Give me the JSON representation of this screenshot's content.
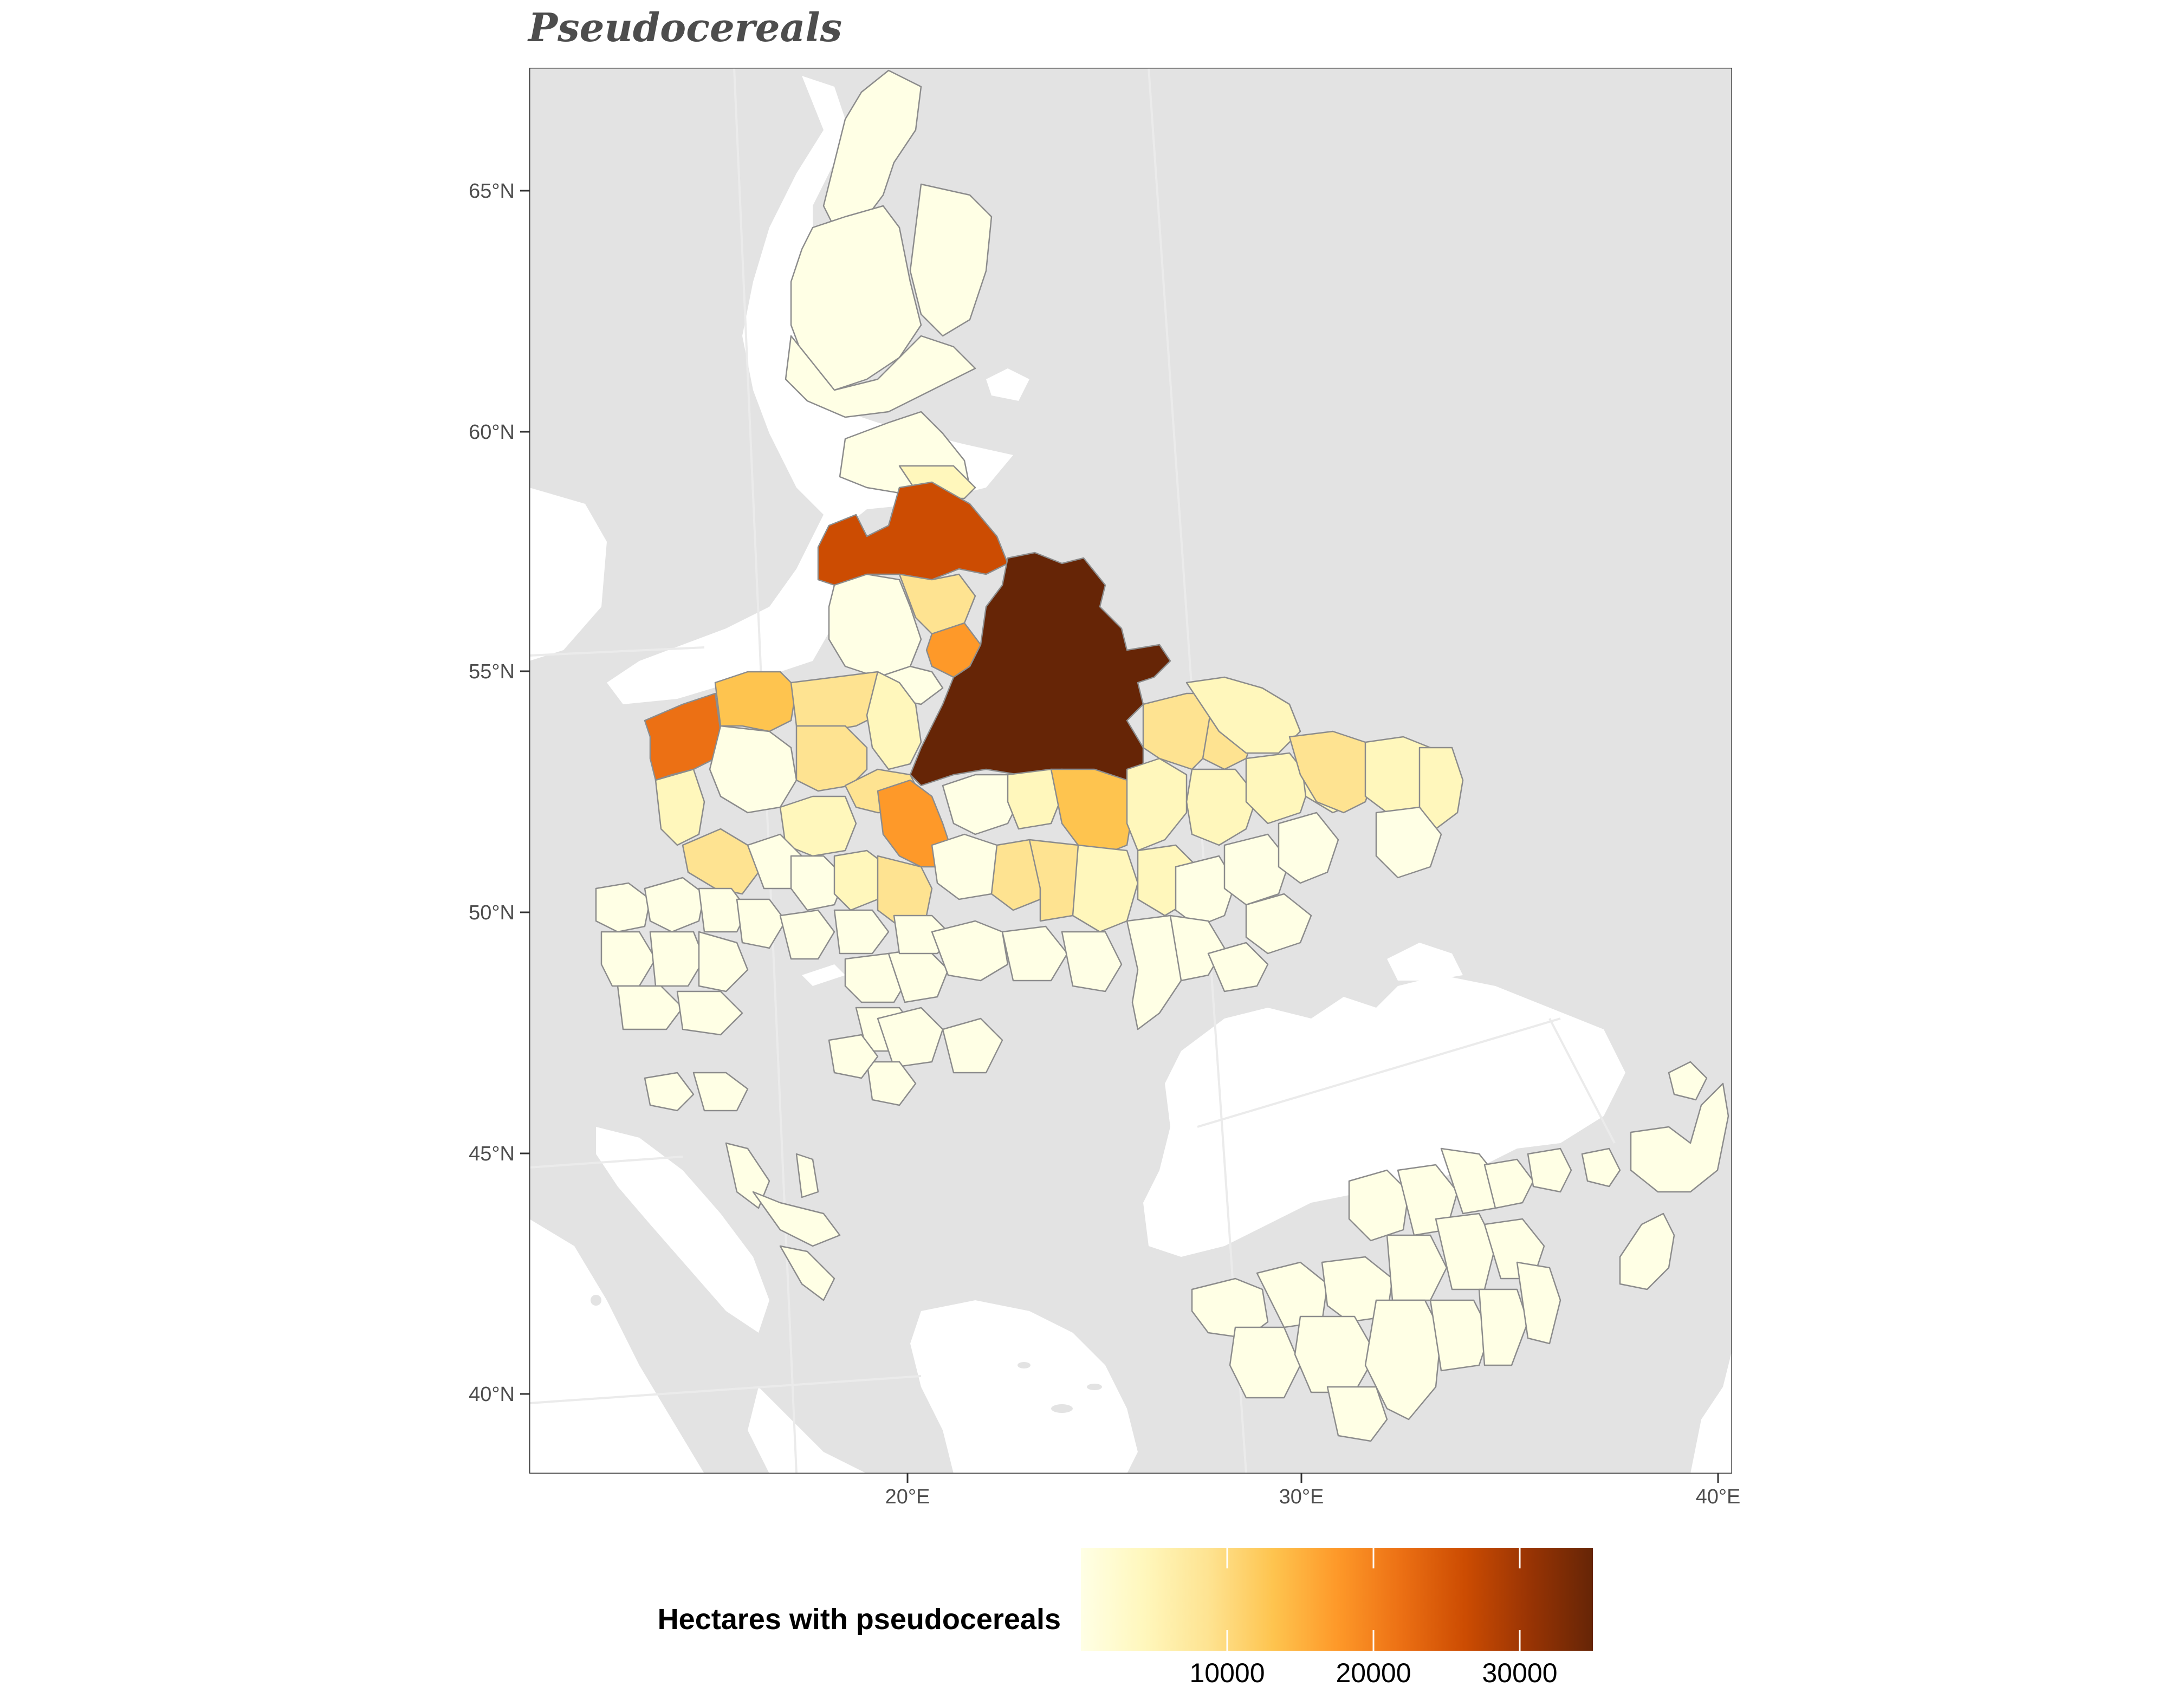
{
  "title": "Pseudocereals",
  "axes": {
    "latitude_labels": [
      {
        "value": 65,
        "label": "65°N"
      },
      {
        "value": 60,
        "label": "60°N"
      },
      {
        "value": 55,
        "label": "55°N"
      },
      {
        "value": 50,
        "label": "50°N"
      },
      {
        "value": 45,
        "label": "45°N"
      },
      {
        "value": 40,
        "label": "40°N"
      }
    ],
    "longitude_labels": [
      {
        "value": 20,
        "label": "20°E"
      },
      {
        "value": 30,
        "label": "30°E"
      },
      {
        "value": 40,
        "label": "40°E"
      }
    ]
  },
  "legend": {
    "title": "Hectares with pseudocereals",
    "min": 0,
    "max": 35000,
    "ticks": [
      {
        "value": 10000,
        "label": "10000"
      },
      {
        "value": 20000,
        "label": "20000"
      },
      {
        "value": 30000,
        "label": "30000"
      }
    ],
    "colors": [
      "#ffffe5",
      "#fff7bc",
      "#fee391",
      "#fec44f",
      "#fe9929",
      "#ec7014",
      "#cc4c02",
      "#993404",
      "#662506"
    ]
  },
  "colors": {
    "sea": "#ffffff",
    "land_background": "#e3e3e3",
    "region_border": "#8c8c8c",
    "panel_border": "#333333",
    "graticule": "#ebebeb"
  }
}
